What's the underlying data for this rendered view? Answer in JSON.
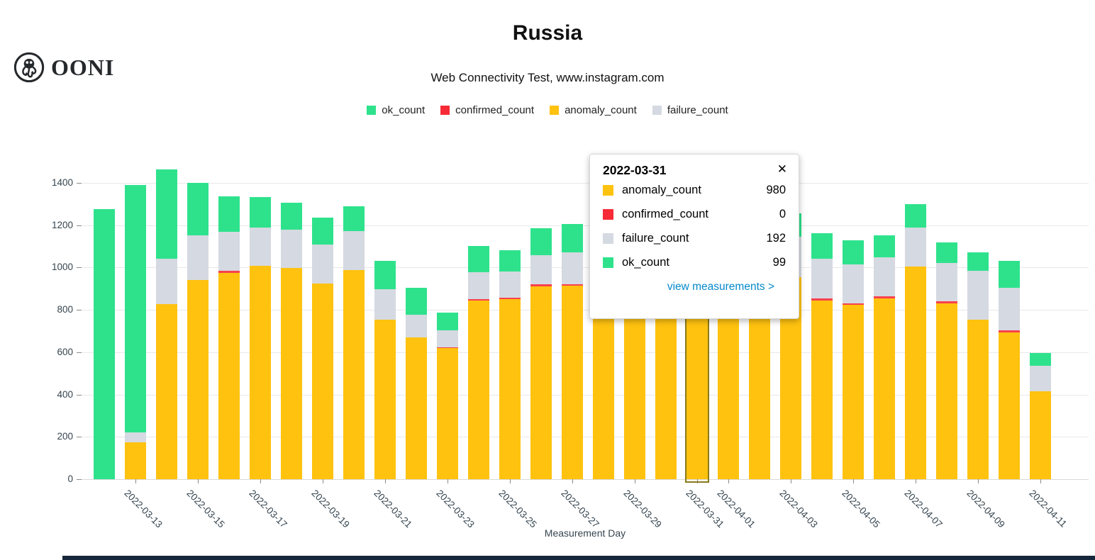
{
  "logo": {
    "wordmark": "OONI"
  },
  "tooltip": {
    "date": "2022-03-31",
    "close_icon": "✕",
    "rows": [
      {
        "label": "anomaly_count",
        "value": "980",
        "color": "#ffc20f"
      },
      {
        "label": "confirmed_count",
        "value": "0",
        "color": "#f62b37"
      },
      {
        "label": "failure_count",
        "value": "192",
        "color": "#d5d9e1"
      },
      {
        "label": "ok_count",
        "value": "99",
        "color": "#2ee28c"
      }
    ],
    "link": "view measurements >"
  },
  "chart_data": {
    "type": "bar",
    "stacked": true,
    "title": "Russia",
    "subtitle": "Web Connectivity Test, www.instagram.com",
    "xlabel": "Measurement Day",
    "ylabel": "",
    "ylim": [
      0,
      1500
    ],
    "yticks": [
      0,
      200,
      400,
      600,
      800,
      1000,
      1200,
      1400
    ],
    "grid": true,
    "legend_position": "top",
    "legend": [
      {
        "label": "ok_count",
        "color": "#2ee28c"
      },
      {
        "label": "confirmed_count",
        "color": "#f62b37"
      },
      {
        "label": "anomaly_count",
        "color": "#ffc20f"
      },
      {
        "label": "failure_count",
        "color": "#d5d9e1"
      }
    ],
    "categories": [
      "2022-03-12",
      "2022-03-13",
      "2022-03-14",
      "2022-03-15",
      "2022-03-16",
      "2022-03-17",
      "2022-03-18",
      "2022-03-19",
      "2022-03-20",
      "2022-03-21",
      "2022-03-22",
      "2022-03-23",
      "2022-03-24",
      "2022-03-25",
      "2022-03-26",
      "2022-03-27",
      "2022-03-28",
      "2022-03-29",
      "2022-03-30",
      "2022-03-31",
      "2022-04-01",
      "2022-04-02",
      "2022-04-03",
      "2022-04-04",
      "2022-04-05",
      "2022-04-06",
      "2022-04-07",
      "2022-04-08",
      "2022-04-09",
      "2022-04-10",
      "2022-04-11"
    ],
    "series": [
      {
        "name": "anomaly_count",
        "color": "#ffc20f",
        "values": [
          0,
          175,
          828,
          940,
          975,
          1008,
          997,
          925,
          988,
          755,
          670,
          618,
          845,
          852,
          912,
          915,
          930,
          950,
          960,
          980,
          970,
          950,
          955,
          845,
          825,
          855,
          1005,
          830,
          755,
          693,
          415
        ]
      },
      {
        "name": "confirmed_count",
        "color": "#f8414d",
        "values": [
          0,
          0,
          0,
          0,
          10,
          0,
          0,
          0,
          0,
          0,
          0,
          6,
          7,
          7,
          8,
          6,
          0,
          0,
          0,
          0,
          0,
          0,
          0,
          8,
          7,
          8,
          0,
          10,
          0,
          10,
          0
        ]
      },
      {
        "name": "failure_count",
        "color": "#d5d9e1",
        "values": [
          0,
          45,
          215,
          213,
          185,
          182,
          181,
          184,
          185,
          143,
          106,
          80,
          126,
          122,
          140,
          150,
          170,
          180,
          185,
          192,
          190,
          185,
          190,
          190,
          182,
          186,
          184,
          183,
          231,
          200,
          120
        ]
      },
      {
        "name": "ok_count",
        "color": "#2ee28c",
        "values": [
          1277,
          1170,
          420,
          247,
          168,
          143,
          128,
          128,
          117,
          133,
          127,
          82,
          124,
          101,
          125,
          135,
          120,
          110,
          105,
          99,
          100,
          105,
          110,
          118,
          115,
          104,
          109,
          97,
          87,
          128,
          62
        ]
      }
    ],
    "selected_category": "2022-03-31",
    "x_tick_labels": [
      "2022-03-13",
      "2022-03-15",
      "2022-03-17",
      "2022-03-19",
      "2022-03-21",
      "2022-03-23",
      "2022-03-25",
      "2022-03-27",
      "2022-03-29",
      "2022-03-31",
      "2022-04-01",
      "2022-04-03",
      "2022-04-05",
      "2022-04-07",
      "2022-04-09",
      "2022-04-11"
    ]
  }
}
